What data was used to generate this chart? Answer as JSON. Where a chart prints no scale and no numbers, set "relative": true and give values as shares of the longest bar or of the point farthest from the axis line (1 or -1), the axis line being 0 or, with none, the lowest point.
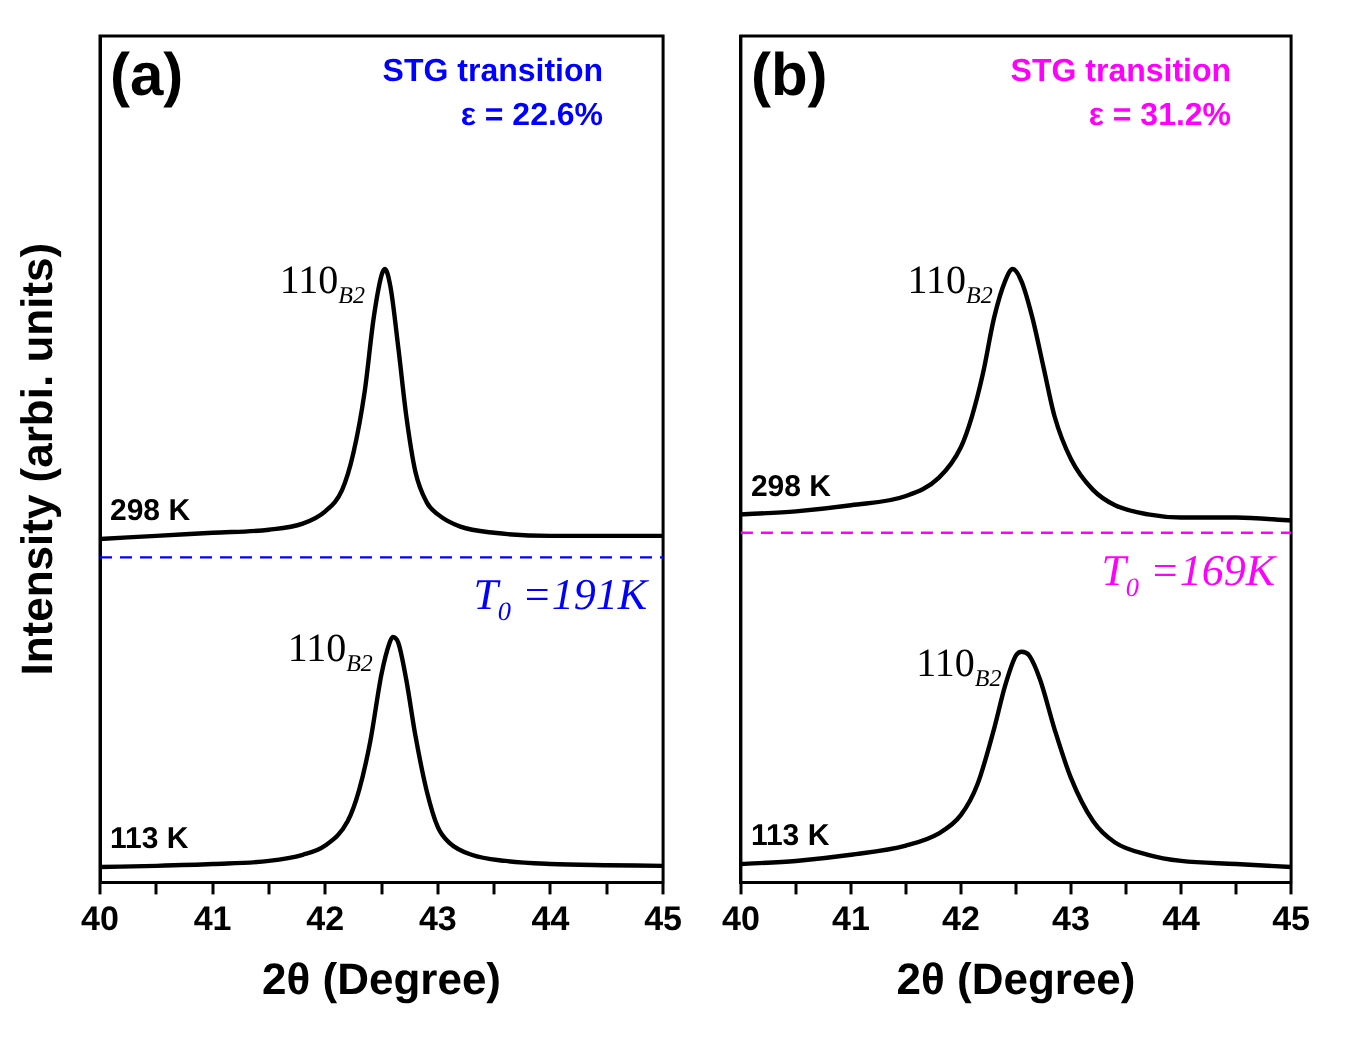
{
  "chart_data": [
    {
      "type": "line",
      "title": "(a)",
      "xlabel": "2θ (Degree)",
      "ylabel": "Intensity (arbi. units)",
      "relative": true,
      "xlim": [
        40,
        45
      ],
      "xticks": [
        40,
        {
          "value": 40.5,
          "label": null
        },
        41,
        {
          "value": 41.5,
          "label": null
        },
        42,
        {
          "value": 42.5,
          "label": null
        },
        43,
        {
          "value": 43.5,
          "label": null
        },
        44,
        {
          "value": 44.5,
          "label": null
        },
        45
      ],
      "tick_labels": "x",
      "grid": false,
      "legend": false,
      "marker": "none",
      "line_style": "solid",
      "series": [
        {
          "name": "298 K",
          "color": "#000000",
          "x": [
            40,
            40.5,
            41,
            41.5,
            41.8,
            42.0,
            42.15,
            42.25,
            42.35,
            42.43,
            42.5,
            42.53,
            42.58,
            42.65,
            42.72,
            42.8,
            42.9,
            43.0,
            43.2,
            43.5,
            44,
            44.5,
            45
          ],
          "values": [
            0.56,
            0.565,
            0.57,
            0.575,
            0.585,
            0.605,
            0.64,
            0.7,
            0.8,
            0.92,
            0.99,
            1.0,
            0.97,
            0.87,
            0.76,
            0.67,
            0.62,
            0.6,
            0.58,
            0.57,
            0.565,
            0.565,
            0.565
          ]
        },
        {
          "name": "113 K",
          "color": "#000000",
          "x": [
            40,
            40.5,
            41,
            41.5,
            41.8,
            42.0,
            42.2,
            42.3,
            42.4,
            42.5,
            42.57,
            42.6,
            42.65,
            42.72,
            42.8,
            42.9,
            43.0,
            43.1,
            43.3,
            43.6,
            44,
            44.5,
            45
          ],
          "values": [
            0.025,
            0.027,
            0.03,
            0.035,
            0.045,
            0.06,
            0.1,
            0.15,
            0.23,
            0.34,
            0.39,
            0.4,
            0.39,
            0.33,
            0.24,
            0.15,
            0.09,
            0.065,
            0.045,
            0.035,
            0.03,
            0.028,
            0.027
          ]
        }
      ],
      "ref_lines": [
        {
          "axis": "y",
          "value": 0.53,
          "color": "#0000ff",
          "line_style": "dashed"
        }
      ],
      "annotations": [
        "STG transition",
        "ε = 22.6%",
        "T$_{0}$ =191K",
        {
          "text": "110$_{B2}$",
          "x": 42.53,
          "y": 1.0
        },
        {
          "text": "110$_{B2}$",
          "x": 42.6,
          "y": 0.4
        }
      ]
    },
    {
      "type": "line",
      "title": "(b)",
      "xlabel": "2θ (Degree)",
      "relative": true,
      "xlim": [
        40,
        45
      ],
      "xticks": [
        40,
        {
          "value": 40.5,
          "label": null
        },
        41,
        {
          "value": 41.5,
          "label": null
        },
        42,
        {
          "value": 42.5,
          "label": null
        },
        43,
        {
          "value": 43.5,
          "label": null
        },
        44,
        {
          "value": 44.5,
          "label": null
        },
        45
      ],
      "tick_labels": "x",
      "grid": false,
      "legend": false,
      "marker": "none",
      "line_style": "solid",
      "series": [
        {
          "name": "298 K",
          "color": "#000000",
          "x": [
            40,
            40.5,
            41,
            41.5,
            41.8,
            42.0,
            42.1,
            42.2,
            42.3,
            42.4,
            42.47,
            42.55,
            42.65,
            42.75,
            42.85,
            43.0,
            43.2,
            43.4,
            43.7,
            44,
            44.5,
            45
          ],
          "values": [
            0.6,
            0.605,
            0.615,
            0.63,
            0.66,
            0.71,
            0.76,
            0.83,
            0.92,
            0.98,
            1.0,
            0.98,
            0.92,
            0.84,
            0.76,
            0.69,
            0.64,
            0.615,
            0.6,
            0.595,
            0.595,
            0.59
          ]
        },
        {
          "name": "113 K",
          "color": "#000000",
          "x": [
            40,
            40.5,
            41,
            41.5,
            41.8,
            42.0,
            42.15,
            42.3,
            42.4,
            42.5,
            42.55,
            42.62,
            42.72,
            42.85,
            43.0,
            43.2,
            43.4,
            43.7,
            44,
            44.5,
            45
          ],
          "values": [
            0.03,
            0.035,
            0.045,
            0.06,
            0.08,
            0.11,
            0.16,
            0.25,
            0.32,
            0.37,
            0.376,
            0.37,
            0.33,
            0.25,
            0.17,
            0.1,
            0.065,
            0.045,
            0.035,
            0.03,
            0.025
          ]
        }
      ],
      "ref_lines": [
        {
          "axis": "y",
          "value": 0.57,
          "color": "#ff00ff",
          "line_style": "dashed"
        }
      ],
      "annotations": [
        "STG transition",
        "ε = 31.2%",
        "T$_{0}$ =169K",
        {
          "text": "110$_{B2}$",
          "x": 42.47,
          "y": 1.0
        },
        {
          "text": "110$_{B2}$",
          "x": 42.55,
          "y": 0.376
        }
      ]
    }
  ]
}
